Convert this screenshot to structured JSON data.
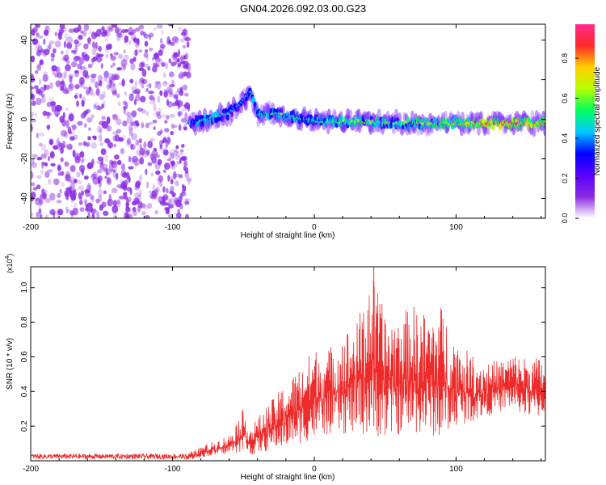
{
  "figure_title": "GN04.2026.092.03.00.G23",
  "colors": {
    "snr_line": "#ee2b2b",
    "background_noise": "#8a2be2",
    "colormap": [
      "#ffffff",
      "#8a2be2",
      "#5a00ff",
      "#0000ff",
      "#00c8ff",
      "#00ff60",
      "#b4ff00",
      "#ffd000",
      "#ff2a2a",
      "#ff2a8a"
    ]
  },
  "chart_data": [
    {
      "type": "heatmap",
      "name": "spectrogram",
      "xlabel": "Height of straight line (km)",
      "ylabel": "Frequency (Hz)",
      "xlim": [
        -200,
        163
      ],
      "ylim": [
        -50,
        48
      ],
      "xticks": [
        -200,
        -100,
        0,
        100
      ],
      "yticks": [
        -40,
        -20,
        0,
        20,
        40
      ],
      "colorbar": {
        "label": "Normalized spectral amplitude",
        "range": [
          0.0,
          0.97
        ],
        "ticks": [
          0.0,
          0.2,
          0.4,
          0.6,
          0.8
        ]
      },
      "noise_region": {
        "x_range": [
          -200,
          -88
        ],
        "y_range": [
          -50,
          48
        ]
      },
      "signal_track": {
        "x": [
          -88,
          -75,
          -60,
          -52,
          -45,
          -40,
          -30,
          -20,
          0,
          30,
          60,
          100,
          130,
          163
        ],
        "freq": [
          -2,
          0,
          3,
          8,
          14,
          2,
          3,
          2,
          -1,
          -1,
          -2,
          -2,
          -2,
          -2
        ],
        "amplitude": [
          0.45,
          0.5,
          0.45,
          0.4,
          0.5,
          0.5,
          0.55,
          0.55,
          0.5,
          0.65,
          0.6,
          0.7,
          0.9,
          0.8
        ]
      }
    },
    {
      "type": "line",
      "name": "snr",
      "xlabel": "Height of straight line (km)",
      "ylabel": "SNR (10 * v/v)",
      "multiplier_label": "(x10",
      "multiplier_exponent": "4",
      "xlim": [
        -200,
        163
      ],
      "ylim": [
        0,
        1.12
      ],
      "xticks": [
        -200,
        -100,
        0,
        100
      ],
      "yticks": [
        0.2,
        0.4,
        0.6,
        0.8,
        1.0
      ],
      "envelope": {
        "x": [
          -200,
          -90,
          -80,
          -60,
          -50,
          -45,
          -40,
          -30,
          -20,
          -10,
          0,
          10,
          20,
          30,
          40,
          50,
          60,
          70,
          80,
          90,
          100,
          110,
          120,
          130,
          140,
          150,
          163
        ],
        "min": [
          0.0,
          0.0,
          0.02,
          0.04,
          0.05,
          0.03,
          0.04,
          0.06,
          0.08,
          0.1,
          0.12,
          0.15,
          0.15,
          0.15,
          0.15,
          0.12,
          0.15,
          0.15,
          0.15,
          0.12,
          0.2,
          0.22,
          0.25,
          0.28,
          0.3,
          0.25,
          0.25
        ],
        "max": [
          0.04,
          0.04,
          0.08,
          0.15,
          0.3,
          0.2,
          0.25,
          0.35,
          0.45,
          0.55,
          0.65,
          0.65,
          0.75,
          0.8,
          1.1,
          0.85,
          0.85,
          0.9,
          0.85,
          0.9,
          0.7,
          0.62,
          0.58,
          0.58,
          0.62,
          0.6,
          0.6
        ]
      },
      "peak": {
        "x": 42,
        "y": 1.12
      }
    }
  ]
}
